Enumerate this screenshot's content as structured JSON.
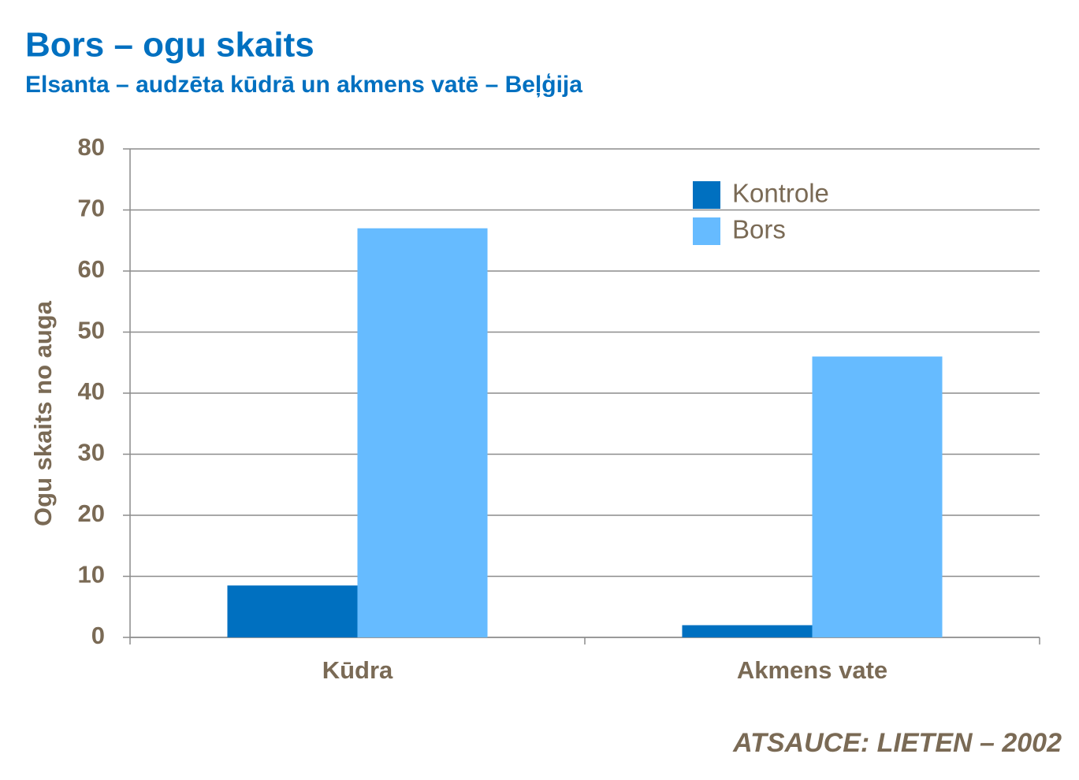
{
  "chart_data": {
    "type": "bar",
    "title": "Bors – ogu skaits",
    "subtitle": "Elsanta – audzēta kūdrā un akmens vatē – Beļģija",
    "ylabel": "Ogu skaits no auga",
    "categories": [
      "Kūdra",
      "Akmens vate"
    ],
    "series": [
      {
        "name": "Kontrole",
        "color": "#0070c0",
        "values": [
          8.5,
          2
        ]
      },
      {
        "name": "Bors",
        "color": "#66bbff",
        "values": [
          67,
          46
        ]
      }
    ],
    "ylim": [
      0,
      80
    ],
    "yticks": [
      0,
      10,
      20,
      30,
      40,
      50,
      60,
      70,
      80
    ],
    "grid": true,
    "source": "ATSAUCE:  LIETEN – 2002"
  }
}
